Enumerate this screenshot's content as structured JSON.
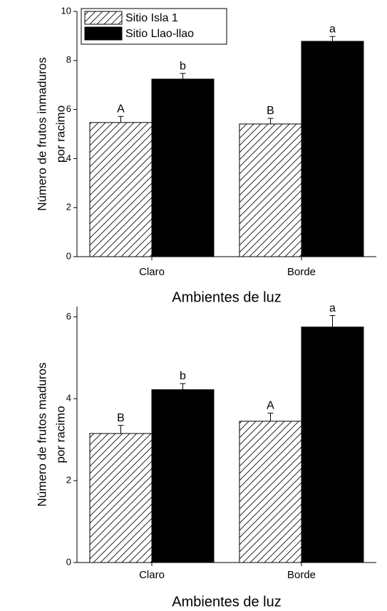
{
  "chart_data": [
    {
      "type": "bar",
      "categories": [
        "Claro",
        "Borde"
      ],
      "series": [
        {
          "name": "Sitio Isla 1",
          "color": "#ffffff",
          "hatch": true,
          "values": [
            5.47,
            5.41
          ],
          "errors": [
            0.25,
            0.23
          ],
          "labels": [
            "A",
            "B"
          ]
        },
        {
          "name": "Sitio Llao-llao",
          "color": "#000000",
          "values": [
            7.24,
            8.78
          ],
          "errors": [
            0.23,
            0.2
          ],
          "labels": [
            "b",
            "a"
          ]
        }
      ],
      "ylim": [
        0,
        10
      ],
      "yticks": [
        0,
        2,
        4,
        6,
        8,
        10
      ],
      "ylabel": [
        "Número de frutos inmaduros",
        "por racimo"
      ],
      "xlabel": "Ambientes de luz",
      "legend": "upper left"
    },
    {
      "type": "bar",
      "categories": [
        "Claro",
        "Borde"
      ],
      "series": [
        {
          "name": "Sitio Isla 1",
          "color": "#ffffff",
          "hatch": true,
          "values": [
            3.15,
            3.45
          ],
          "errors": [
            0.2,
            0.2
          ],
          "labels": [
            "B",
            "A"
          ]
        },
        {
          "name": "Sitio Llao-llao",
          "color": "#000000",
          "values": [
            4.22,
            5.75
          ],
          "errors": [
            0.15,
            0.28
          ],
          "labels": [
            "b",
            "a"
          ]
        }
      ],
      "ylim": [
        0,
        6.25
      ],
      "yticks": [
        0,
        2,
        4,
        6
      ],
      "ylabel": [
        "Número de frutos maduros",
        "por racimo"
      ],
      "xlabel": "Ambientes de luz"
    }
  ]
}
